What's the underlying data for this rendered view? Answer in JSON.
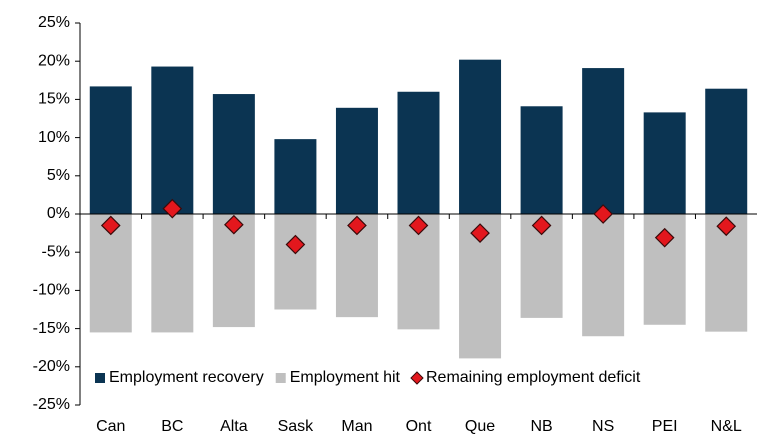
{
  "chart_data": {
    "type": "bar",
    "categories": [
      "Can",
      "BC",
      "Alta",
      "Sask",
      "Man",
      "Ont",
      "Que",
      "NB",
      "NS",
      "PEI",
      "N&L"
    ],
    "series": [
      {
        "name": "Employment recovery",
        "color": "#0b3452",
        "type": "bar",
        "values": [
          16.7,
          19.3,
          15.7,
          9.8,
          13.9,
          16.0,
          20.2,
          14.1,
          19.1,
          13.3,
          16.4
        ]
      },
      {
        "name": "Employment hit",
        "color": "#bfbfbf",
        "type": "bar",
        "values": [
          -15.5,
          -15.5,
          -14.8,
          -12.5,
          -13.5,
          -15.1,
          -18.9,
          -13.6,
          -16.0,
          -14.5,
          -15.4
        ]
      },
      {
        "name": "Remaining employment deficit",
        "color": "#e3171d",
        "type": "scatter",
        "values": [
          -1.5,
          0.7,
          -1.4,
          -4.0,
          -1.5,
          -1.5,
          -2.5,
          -1.5,
          0.0,
          -3.1,
          -1.6
        ]
      }
    ],
    "ylim": [
      -25,
      25
    ],
    "yticks": [
      {
        "value": -25,
        "label": "-25%"
      },
      {
        "value": -20,
        "label": "-20%"
      },
      {
        "value": -15,
        "label": "-15%"
      },
      {
        "value": -10,
        "label": "-10%"
      },
      {
        "value": -5,
        "label": "-5%"
      },
      {
        "value": 0,
        "label": "0%"
      },
      {
        "value": 5,
        "label": "5%"
      },
      {
        "value": 10,
        "label": "10%"
      },
      {
        "value": 15,
        "label": "15%"
      },
      {
        "value": 20,
        "label": "20%"
      },
      {
        "value": 25,
        "label": "25%"
      }
    ],
    "legend": "bottom-left"
  }
}
